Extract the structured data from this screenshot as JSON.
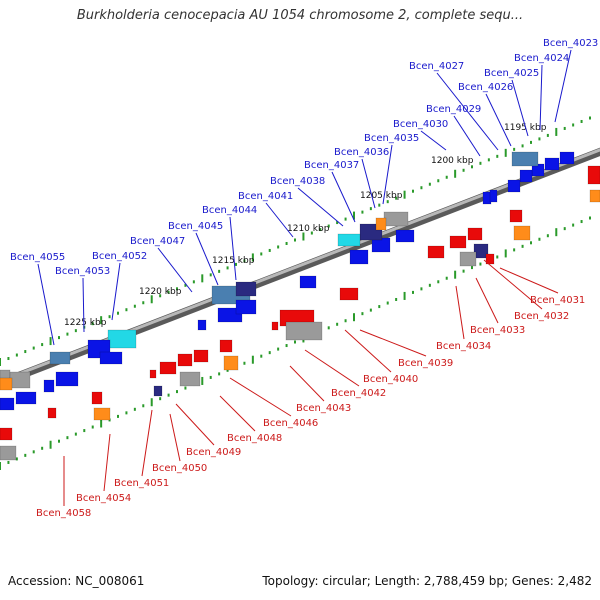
{
  "title": "Burkholderia cenocepacia AU 1054 chromosome 2, complete sequ...",
  "footer": {
    "accession": "Accession: NC_008061",
    "summary": "Topology: circular; Length: 2,788,459 bp; Genes: 2,482"
  },
  "colors": {
    "backbone": "#8a8a8a",
    "forward_gene": "#0a14e6",
    "reverse_gene": "#e80a0a",
    "rna_gene": "#ff8c1a",
    "pseudo_gene": "#9a9a9a",
    "cyan_gene": "#22d8e6",
    "steelblue_gene": "#4a7fb0",
    "navy_gene": "#2a2a80",
    "forward_label": "#1a1acc",
    "reverse_label": "#cc1a1a",
    "tick_marks": "#2a9a2a"
  },
  "scale_labels": [
    "1195 kbp",
    "1200 kbp",
    "1205 kbp",
    "1210 kbp",
    "1215 kbp",
    "1220 kbp",
    "1225 kbp"
  ],
  "forward_genes": [
    "Bcen_4023",
    "Bcen_4024",
    "Bcen_4025",
    "Bcen_4026",
    "Bcen_4027",
    "Bcen_4029",
    "Bcen_4030",
    "Bcen_4035",
    "Bcen_4036",
    "Bcen_4037",
    "Bcen_4038",
    "Bcen_4041",
    "Bcen_4044",
    "Bcen_4045",
    "Bcen_4047",
    "Bcen_4052",
    "Bcen_4053",
    "Bcen_4055"
  ],
  "reverse_genes": [
    "Bcen_4031",
    "Bcen_4032",
    "Bcen_4033",
    "Bcen_4034",
    "Bcen_4039",
    "Bcen_4040",
    "Bcen_4042",
    "Bcen_4043",
    "Bcen_4046",
    "Bcen_4048",
    "Bcen_4049",
    "Bcen_4050",
    "Bcen_4051",
    "Bcen_4054",
    "Bcen_4058"
  ]
}
